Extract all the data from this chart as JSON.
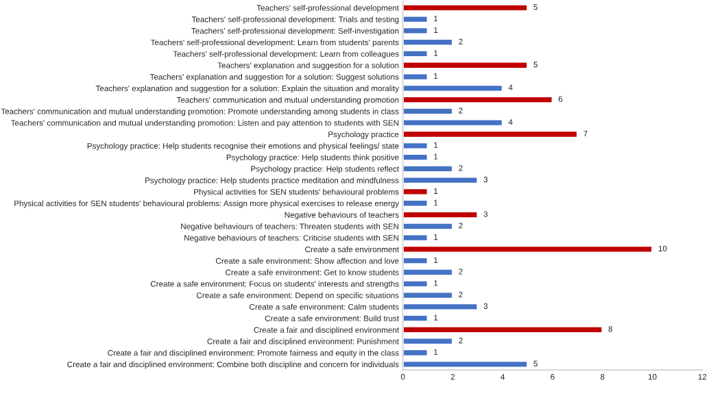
{
  "chart_data": {
    "type": "bar",
    "orientation": "horizontal",
    "data_labels": true,
    "grid": false,
    "categories": [
      "Teachers' self-professional development",
      "Teachers' self-professional development: Trials and testing",
      "Teachers' self-professional development: Self-investigation",
      "Teachers' self-professional development: Learn from students' parents",
      "Teachers' self-professional development: Learn from colleagues",
      "Teachers' explanation and suggestion for a solution",
      "Teachers' explanation and suggestion for a solution: Suggest solutions",
      "Teachers' explanation and suggestion for a solution: Explain the situation and morality",
      "Teachers' communication and mutual understanding promotion",
      "Teachers' communication and mutual understanding promotion: Promote understanding among students in class",
      "Teachers' communication and mutual understanding promotion: Listen and pay attention to students with SEN",
      "Psychology practice",
      "Psychology practice: Help students recognise their emotions and physical feelings/ state",
      "Psychology practice: Help students think positive",
      "Psychology practice: Help students reflect",
      "Psychology practice: Help students practice meditation and mindfulness",
      "Physical activities for SEN students' behavioural problems",
      "Physical activities for SEN students' behavioural problems: Assign more physical exercises to release energy",
      "Negative behaviours of teachers",
      "Negative behaviours of teachers: Threaten students with SEN",
      "Negative behaviours of teachers: Criticise students with SEN",
      "Create a safe environment",
      "Create a safe environment: Show affection and love",
      "Create a safe environment: Get to know students",
      "Create a safe environment: Focus on students' interests and strengths",
      "Create a safe environment: Depend on specific situations",
      "Create a safe environment: Calm students",
      "Create a safe environment: Build trust",
      "Create a fair and disciplined environment",
      "Create a fair and disciplined environment: Punishment",
      "Create a fair and disciplined environment: Promote fairness and equity in the class",
      "Create a fair and disciplined environment: Combine both discipline and concern for individuals"
    ],
    "values": [
      5,
      1,
      1,
      2,
      1,
      5,
      1,
      4,
      6,
      2,
      4,
      7,
      1,
      1,
      2,
      3,
      1,
      1,
      3,
      2,
      1,
      10,
      1,
      2,
      1,
      2,
      3,
      1,
      8,
      2,
      1,
      5
    ],
    "colors": [
      "#c00000",
      "#4472c4",
      "#4472c4",
      "#4472c4",
      "#4472c4",
      "#c00000",
      "#4472c4",
      "#4472c4",
      "#c00000",
      "#4472c4",
      "#4472c4",
      "#c00000",
      "#4472c4",
      "#4472c4",
      "#4472c4",
      "#4472c4",
      "#c00000",
      "#4472c4",
      "#c00000",
      "#4472c4",
      "#4472c4",
      "#c00000",
      "#4472c4",
      "#4472c4",
      "#4472c4",
      "#4472c4",
      "#4472c4",
      "#4472c4",
      "#c00000",
      "#4472c4",
      "#4472c4",
      "#4472c4"
    ],
    "xlim": [
      0,
      12
    ],
    "xticks": [
      0,
      2,
      4,
      6,
      8,
      10,
      12
    ]
  }
}
